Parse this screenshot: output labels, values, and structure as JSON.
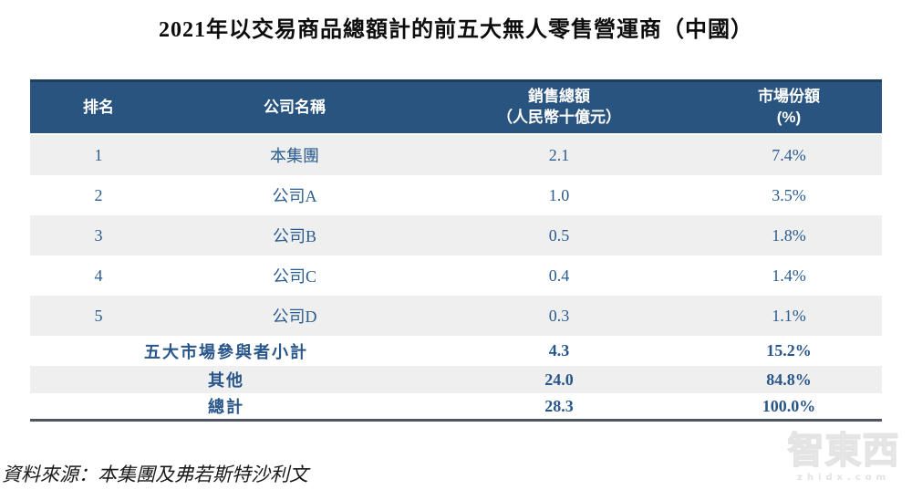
{
  "title": "2021年以交易商品總額計的前五大無人零售營運商（中國）",
  "table": {
    "headers": {
      "rank": "排名",
      "company": "公司名稱",
      "sales_line1": "銷售總額",
      "sales_line2": "（人民幣十億元）",
      "share_line1": "市場份額",
      "share_line2": "(%)"
    },
    "rows": [
      {
        "rank": "1",
        "company": "本集團",
        "sales": "2.1",
        "share": "7.4%"
      },
      {
        "rank": "2",
        "company": "公司A",
        "sales": "1.0",
        "share": "3.5%"
      },
      {
        "rank": "3",
        "company": "公司B",
        "sales": "0.5",
        "share": "1.8%"
      },
      {
        "rank": "4",
        "company": "公司C",
        "sales": "0.4",
        "share": "1.4%"
      },
      {
        "rank": "5",
        "company": "公司D",
        "sales": "0.3",
        "share": "1.1%"
      }
    ],
    "summary": [
      {
        "label": "五大市場參與者小計",
        "sales": "4.3",
        "share": "15.2%"
      },
      {
        "label": "其他",
        "sales": "24.0",
        "share": "84.8%"
      },
      {
        "label": "總計",
        "sales": "28.3",
        "share": "100.0%"
      }
    ]
  },
  "source_note": "資料來源：本集團及弗若斯特沙利文",
  "watermark": {
    "name": "智東西",
    "domain": "zhidx.com"
  },
  "colors": {
    "header_bg": "#2a5480",
    "header_top_border": "#1c3e61",
    "row_stripe": "#efefef",
    "text_blue": "#2b5c8f",
    "bottom_rule": "#4d5563"
  }
}
